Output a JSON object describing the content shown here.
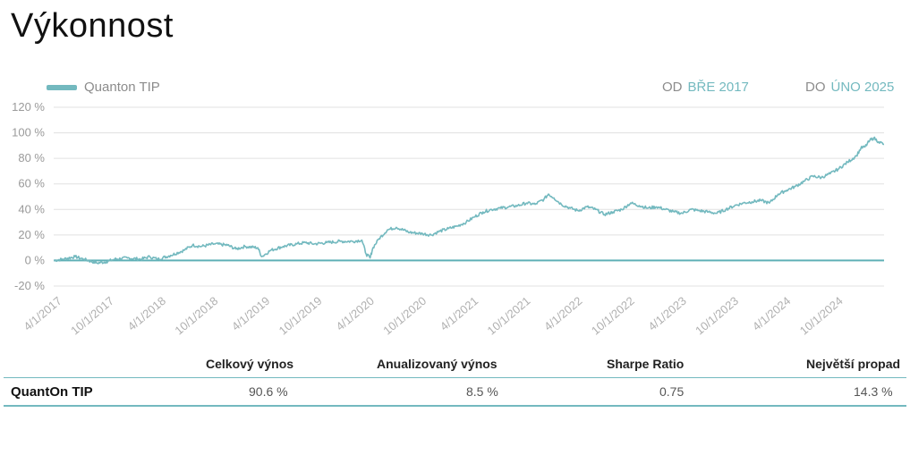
{
  "page": {
    "title": "Výkonnost"
  },
  "legend": {
    "label": "Quanton TIP"
  },
  "range": {
    "from_label": "OD",
    "from_value": "BŘE 2017",
    "to_label": "DO",
    "to_value": "ÚNO 2025"
  },
  "colors": {
    "series": "#73b9bf",
    "grid": "#e0e0e0",
    "zero_line": "#5fb0b6"
  },
  "chart_data": {
    "type": "line",
    "ylim": [
      -20,
      120
    ],
    "y_ticks": [
      -20,
      0,
      20,
      40,
      60,
      80,
      100,
      120
    ],
    "y_tick_suffix": " %",
    "x_range": [
      "2017-03-01",
      "2025-02-20"
    ],
    "x_ticks": [
      "4/1/2017",
      "10/1/2017",
      "4/1/2018",
      "10/1/2018",
      "4/1/2019",
      "10/1/2019",
      "4/1/2020",
      "10/1/2020",
      "4/1/2021",
      "10/1/2021",
      "4/1/2022",
      "10/1/2022",
      "4/1/2023",
      "10/1/2023",
      "4/1/2024",
      "10/1/2024"
    ],
    "grid": true,
    "legend_position": "top-left",
    "series": [
      {
        "name": "Quanton TIP",
        "points": [
          [
            "2017-03-01",
            0
          ],
          [
            "2017-04-01",
            1
          ],
          [
            "2017-05-15",
            3
          ],
          [
            "2017-06-15",
            1
          ],
          [
            "2017-08-01",
            -2
          ],
          [
            "2017-09-01",
            -1
          ],
          [
            "2017-10-01",
            1
          ],
          [
            "2017-11-15",
            2
          ],
          [
            "2018-01-01",
            1
          ],
          [
            "2018-02-01",
            3
          ],
          [
            "2018-03-01",
            1
          ],
          [
            "2018-04-15",
            4
          ],
          [
            "2018-06-01",
            8
          ],
          [
            "2018-07-01",
            12
          ],
          [
            "2018-08-01",
            11
          ],
          [
            "2018-09-15",
            13
          ],
          [
            "2018-11-01",
            12
          ],
          [
            "2018-12-01",
            9
          ],
          [
            "2019-01-01",
            11
          ],
          [
            "2019-02-15",
            10
          ],
          [
            "2019-03-01",
            3
          ],
          [
            "2019-04-01",
            8
          ],
          [
            "2019-05-15",
            11
          ],
          [
            "2019-07-01",
            13
          ],
          [
            "2019-08-01",
            14
          ],
          [
            "2019-09-01",
            13
          ],
          [
            "2019-10-15",
            14
          ],
          [
            "2019-12-01",
            15
          ],
          [
            "2020-01-15",
            15
          ],
          [
            "2020-02-15",
            16
          ],
          [
            "2020-03-01",
            5
          ],
          [
            "2020-03-15",
            2
          ],
          [
            "2020-03-25",
            10
          ],
          [
            "2020-04-15",
            17
          ],
          [
            "2020-05-15",
            24
          ],
          [
            "2020-06-15",
            26
          ],
          [
            "2020-08-01",
            22
          ],
          [
            "2020-09-15",
            21
          ],
          [
            "2020-10-15",
            20
          ],
          [
            "2020-11-15",
            23
          ],
          [
            "2020-12-15",
            25
          ],
          [
            "2021-01-15",
            27
          ],
          [
            "2021-02-15",
            30
          ],
          [
            "2021-03-15",
            34
          ],
          [
            "2021-04-15",
            38
          ],
          [
            "2021-05-15",
            40
          ],
          [
            "2021-06-15",
            41
          ],
          [
            "2021-07-15",
            42
          ],
          [
            "2021-08-15",
            43
          ],
          [
            "2021-09-15",
            45
          ],
          [
            "2021-10-15",
            44
          ],
          [
            "2021-11-15",
            48
          ],
          [
            "2021-12-01",
            52
          ],
          [
            "2021-12-20",
            49
          ],
          [
            "2022-01-15",
            44
          ],
          [
            "2022-02-15",
            41
          ],
          [
            "2022-03-15",
            39
          ],
          [
            "2022-04-15",
            42
          ],
          [
            "2022-05-15",
            40
          ],
          [
            "2022-06-15",
            36
          ],
          [
            "2022-07-15",
            38
          ],
          [
            "2022-08-15",
            40
          ],
          [
            "2022-09-15",
            45
          ],
          [
            "2022-10-15",
            43
          ],
          [
            "2022-11-15",
            41
          ],
          [
            "2022-12-15",
            42
          ],
          [
            "2023-01-15",
            40
          ],
          [
            "2023-02-15",
            38
          ],
          [
            "2023-03-15",
            37
          ],
          [
            "2023-04-15",
            40
          ],
          [
            "2023-05-15",
            39
          ],
          [
            "2023-06-15",
            38
          ],
          [
            "2023-07-15",
            37
          ],
          [
            "2023-08-15",
            40
          ],
          [
            "2023-09-15",
            43
          ],
          [
            "2023-10-15",
            45
          ],
          [
            "2023-11-15",
            46
          ],
          [
            "2023-12-15",
            47
          ],
          [
            "2024-01-15",
            45
          ],
          [
            "2024-02-15",
            52
          ],
          [
            "2024-03-15",
            55
          ],
          [
            "2024-04-15",
            58
          ],
          [
            "2024-05-15",
            62
          ],
          [
            "2024-06-15",
            66
          ],
          [
            "2024-07-15",
            65
          ],
          [
            "2024-08-15",
            68
          ],
          [
            "2024-09-15",
            72
          ],
          [
            "2024-10-15",
            77
          ],
          [
            "2024-11-15",
            82
          ],
          [
            "2024-12-01",
            88
          ],
          [
            "2024-12-15",
            89
          ],
          [
            "2025-01-01",
            94
          ],
          [
            "2025-01-15",
            96
          ],
          [
            "2025-02-01",
            93
          ],
          [
            "2025-02-20",
            91
          ]
        ]
      }
    ]
  },
  "stats": {
    "headers": [
      "Celkový výnos",
      "Anualizovaný výnos",
      "Sharpe Ratio",
      "Největší propad"
    ],
    "rows": [
      {
        "name": "QuantOn TIP",
        "values": [
          "90.6 %",
          "8.5 %",
          "0.75",
          "14.3 %"
        ]
      }
    ]
  }
}
